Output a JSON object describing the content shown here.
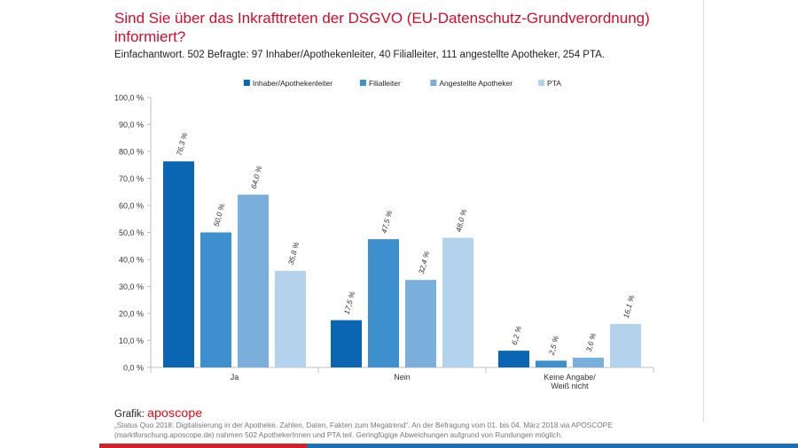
{
  "header": {
    "title": "Sind Sie über das Inkrafttreten der DSGVO (EU-Datenschutz-Grundverordnung) informiert?",
    "subtitle": "Einfachantwort. 502 Befragte: 97 Inhaber/Apothekenleiter, 40 Filialleiter, 111 angestellte Apotheker, 254 PTA."
  },
  "footer": {
    "credit_label": "Grafik:",
    "brand_name": "aposcope",
    "source": "„Status Quo 2018: Digitalisierung in der Apotheke. Zahlen, Daten, Fakten zum Megatrend“. An der Befragung vom 01. bis 04. März 2018 via APOSCOPE (marktforschung.aposcope.de) nahmen 502 ApothekerInnen und PTA teil. Geringfügige Abweichungen aufgrund von Rundungen möglich."
  },
  "colors": {
    "title": "#c8102e",
    "brand": "#e30613",
    "bar_red": "#d42027",
    "bar_blue": "#1f6fb8"
  },
  "chart_data": {
    "type": "bar",
    "categories": [
      "Ja",
      "Nein",
      "Keine Angabe/ Weiß nicht"
    ],
    "category_lines": [
      [
        "Ja"
      ],
      [
        "Nein"
      ],
      [
        "Keine Angabe/",
        "Weiß nicht"
      ]
    ],
    "series": [
      {
        "name": "Inhaber/Apothekenleiter",
        "color": "#0a66b2",
        "values": [
          76.3,
          17.5,
          6.2
        ],
        "labels": [
          "76,3 %",
          "17,5 %",
          "6,2 %"
        ]
      },
      {
        "name": "Filialleiter",
        "color": "#3d8fcd",
        "values": [
          50.0,
          47.5,
          2.5
        ],
        "labels": [
          "50,0 %",
          "47,5 %",
          "2,5 %"
        ]
      },
      {
        "name": "Angestellte Apotheker",
        "color": "#7aaedb",
        "values": [
          64.0,
          32.4,
          3.6
        ],
        "labels": [
          "64,0 %",
          "32,4 %",
          "3,6 %"
        ]
      },
      {
        "name": "PTA",
        "color": "#b3d2ec",
        "values": [
          35.8,
          48.0,
          16.1
        ],
        "labels": [
          "35,8 %",
          "48,0 %",
          "16,1 %"
        ]
      }
    ],
    "ylim": [
      0,
      100
    ],
    "yticks": [
      0,
      10,
      20,
      30,
      40,
      50,
      60,
      70,
      80,
      90,
      100
    ],
    "ytick_labels": [
      "0,0 %",
      "10,0 %",
      "20,0 %",
      "30,0 %",
      "40,0 %",
      "50,0 %",
      "60,0 %",
      "70,0 %",
      "80,0 %",
      "90,0 %",
      "100,0 %"
    ],
    "legend_position": "top-center",
    "grid": false
  }
}
